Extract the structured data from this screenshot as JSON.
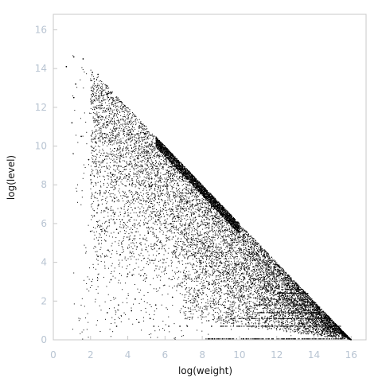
{
  "chart_data": {
    "type": "scatter",
    "title": "",
    "xlabel": "log(weight)",
    "ylabel": "log(level)",
    "xlim": [
      0,
      16.8
    ],
    "ylim": [
      0,
      16.8
    ],
    "xticks": [
      0,
      2,
      4,
      6,
      8,
      10,
      12,
      14,
      16
    ],
    "yticks": [
      0,
      2,
      4,
      6,
      8,
      10,
      12,
      14,
      16
    ],
    "x_tick_labels": [
      "0",
      "2",
      "4",
      "6",
      "8",
      "10",
      "12",
      "14",
      "16"
    ],
    "y_tick_labels": [
      "0",
      "2",
      "4",
      "6",
      "8",
      "10",
      "12",
      "14",
      "16"
    ],
    "grid": false,
    "legend": "none",
    "point_color": "#000000",
    "axis_color": "#c8c8c8",
    "tick_label_color": "#b8c4d2",
    "series": [
      {
        "points": [
          [
            0.7,
            14.1
          ],
          [
            1.1,
            14.6
          ],
          [
            1.6,
            14.5
          ],
          [
            1.2,
            13.2
          ],
          [
            2.1,
            13.8
          ],
          [
            2.4,
            13.7
          ],
          [
            2.9,
            13.1
          ],
          [
            1.1,
            12.5
          ],
          [
            2.3,
            12.6
          ],
          [
            3.2,
            12.4
          ],
          [
            3.6,
            12.3
          ],
          [
            1.0,
            11.2
          ],
          [
            2.4,
            11.5
          ],
          [
            2.9,
            11.1
          ],
          [
            3.5,
            11.3
          ],
          [
            4.1,
            11.2
          ],
          [
            1.5,
            10.5
          ],
          [
            3.0,
            10.3
          ],
          [
            4.2,
            10.6
          ],
          [
            4.7,
            10.7
          ],
          [
            1.9,
            9.3
          ],
          [
            3.6,
            9.5
          ],
          [
            4.6,
            9.8
          ],
          [
            5.4,
            9.5
          ],
          [
            5.9,
            9.8
          ],
          [
            2.0,
            8.5
          ],
          [
            3.1,
            8.4
          ],
          [
            4.8,
            8.6
          ],
          [
            5.6,
            8.7
          ],
          [
            6.3,
            9.2
          ],
          [
            2.5,
            7.7
          ],
          [
            3.3,
            7.3
          ],
          [
            4.5,
            7.6
          ],
          [
            5.2,
            7.9
          ],
          [
            6.1,
            7.8
          ],
          [
            7.0,
            8.2
          ],
          [
            2.2,
            6.4
          ],
          [
            3.7,
            6.2
          ],
          [
            4.4,
            6.8
          ],
          [
            5.5,
            6.4
          ],
          [
            6.4,
            6.7
          ],
          [
            7.2,
            7.1
          ],
          [
            2.0,
            5.6
          ],
          [
            3.4,
            5.7
          ],
          [
            4.1,
            5.2
          ],
          [
            5.1,
            5.5
          ],
          [
            6.0,
            5.8
          ],
          [
            7.3,
            5.9
          ],
          [
            2.4,
            4.3
          ],
          [
            3.6,
            4.4
          ],
          [
            4.5,
            4.8
          ],
          [
            5.3,
            4.1
          ],
          [
            6.5,
            4.6
          ],
          [
            7.6,
            4.3
          ],
          [
            3.1,
            3.1
          ],
          [
            4.0,
            3.4
          ],
          [
            5.0,
            3.2
          ],
          [
            6.0,
            3.6
          ],
          [
            7.1,
            3.3
          ],
          [
            8.2,
            3.5
          ],
          [
            3.5,
            1.8
          ],
          [
            4.4,
            2.1
          ],
          [
            5.5,
            1.8
          ],
          [
            6.4,
            2.2
          ],
          [
            7.5,
            1.9
          ],
          [
            8.6,
            2.0
          ],
          [
            2.9,
            1.4
          ],
          [
            4.2,
            1.5
          ],
          [
            5.2,
            1.1
          ],
          [
            6.2,
            0.7
          ],
          [
            7.2,
            0.7
          ],
          [
            8.5,
            0.7
          ],
          [
            3.4,
            0.7
          ],
          [
            4.6,
            0.9
          ],
          [
            5.4,
            0.7
          ],
          [
            6.8,
            0.7
          ],
          [
            9.0,
            0.7
          ],
          [
            10.0,
            0.7
          ]
        ]
      }
    ]
  }
}
